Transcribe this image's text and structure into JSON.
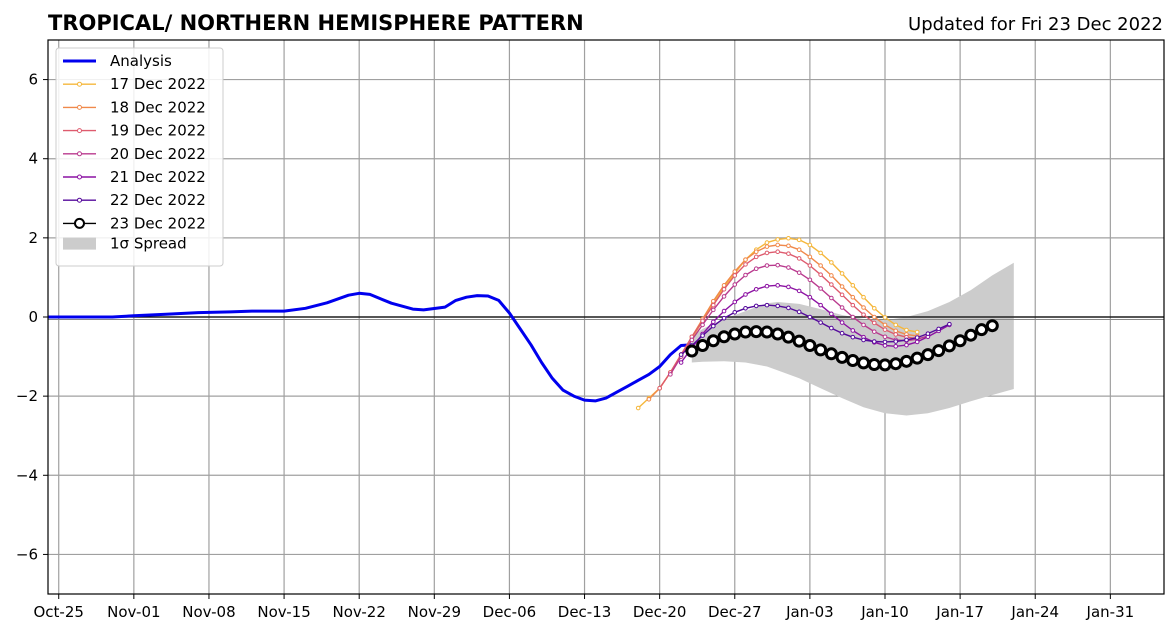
{
  "title": "TROPICAL/ NORTHERN HEMISPHERE PATTERN",
  "subtitle": "Updated for Fri 23 Dec 2022",
  "chart_data": {
    "type": "line",
    "title": "TROPICAL/ NORTHERN HEMISPHERE PATTERN",
    "xlabel": "",
    "ylabel": "",
    "xlim": [
      "2022-10-24",
      "2023-02-05"
    ],
    "ylim": [
      -7,
      7
    ],
    "x_ticks": [
      "Oct-25",
      "Nov-01",
      "Nov-08",
      "Nov-15",
      "Nov-22",
      "Nov-29",
      "Dec-06",
      "Dec-13",
      "Dec-20",
      "Dec-27",
      "Jan-03",
      "Jan-10",
      "Jan-17",
      "Jan-24",
      "Jan-31"
    ],
    "x_tick_dates": [
      "2022-10-25",
      "2022-11-01",
      "2022-11-08",
      "2022-11-15",
      "2022-11-22",
      "2022-11-29",
      "2022-12-06",
      "2022-12-13",
      "2022-12-20",
      "2022-12-27",
      "2023-01-03",
      "2023-01-10",
      "2023-01-17",
      "2023-01-24",
      "2023-01-31"
    ],
    "y_ticks": [
      6,
      4,
      2,
      0,
      -2,
      -4,
      -6
    ],
    "y_tick_labels": [
      "6",
      "4",
      "2",
      "0",
      "−2",
      "−4",
      "−6"
    ],
    "grid": true,
    "legend_position": "top-left",
    "zero_line": true,
    "analysis": {
      "name": "Analysis",
      "color": "#0000ee",
      "points": [
        [
          "2022-10-24",
          0.0
        ],
        [
          "2022-10-27",
          0.0
        ],
        [
          "2022-10-30",
          0.0
        ],
        [
          "2022-11-01",
          0.03
        ],
        [
          "2022-11-04",
          0.07
        ],
        [
          "2022-11-07",
          0.11
        ],
        [
          "2022-11-10",
          0.13
        ],
        [
          "2022-11-12",
          0.15
        ],
        [
          "2022-11-15",
          0.15
        ],
        [
          "2022-11-17",
          0.22
        ],
        [
          "2022-11-19",
          0.36
        ],
        [
          "2022-11-21",
          0.55
        ],
        [
          "2022-11-22",
          0.6
        ],
        [
          "2022-11-23",
          0.57
        ],
        [
          "2022-11-25",
          0.35
        ],
        [
          "2022-11-27",
          0.2
        ],
        [
          "2022-11-28",
          0.18
        ],
        [
          "2022-11-30",
          0.25
        ],
        [
          "2022-12-01",
          0.42
        ],
        [
          "2022-12-02",
          0.5
        ],
        [
          "2022-12-03",
          0.54
        ],
        [
          "2022-12-04",
          0.53
        ],
        [
          "2022-12-05",
          0.42
        ],
        [
          "2022-12-06",
          0.1
        ],
        [
          "2022-12-07",
          -0.3
        ],
        [
          "2022-12-08",
          -0.7
        ],
        [
          "2022-12-09",
          -1.15
        ],
        [
          "2022-12-10",
          -1.55
        ],
        [
          "2022-12-11",
          -1.85
        ],
        [
          "2022-12-12",
          -2.0
        ],
        [
          "2022-12-13",
          -2.1
        ],
        [
          "2022-12-14",
          -2.12
        ],
        [
          "2022-12-15",
          -2.05
        ],
        [
          "2022-12-16",
          -1.9
        ],
        [
          "2022-12-17",
          -1.75
        ],
        [
          "2022-12-18",
          -1.6
        ],
        [
          "2022-12-19",
          -1.45
        ],
        [
          "2022-12-20",
          -1.25
        ],
        [
          "2022-12-21",
          -0.95
        ],
        [
          "2022-12-22",
          -0.72
        ],
        [
          "2022-12-23",
          -0.7
        ]
      ]
    },
    "series": [
      {
        "name": "17 Dec 2022",
        "color": "#f5b73b",
        "start": "2022-12-18",
        "step_days": 1,
        "values": [
          -2.3,
          -2.05,
          -1.8,
          -1.4,
          -1.0,
          -0.55,
          -0.1,
          0.35,
          0.75,
          1.1,
          1.45,
          1.7,
          1.88,
          1.96,
          1.99,
          1.95,
          1.82,
          1.62,
          1.38,
          1.1,
          0.8,
          0.5,
          0.22,
          -0.01,
          -0.2,
          -0.33,
          -0.38
        ]
      },
      {
        "name": "18 Dec 2022",
        "color": "#f0894b",
        "start": "2022-12-19",
        "step_days": 1,
        "values": [
          -2.08,
          -1.8,
          -1.4,
          -0.95,
          -0.5,
          -0.05,
          0.4,
          0.8,
          1.15,
          1.45,
          1.65,
          1.78,
          1.82,
          1.8,
          1.7,
          1.52,
          1.3,
          1.05,
          0.77,
          0.5,
          0.24,
          0.0,
          -0.2,
          -0.35,
          -0.44,
          -0.48
        ]
      },
      {
        "name": "19 Dec 2022",
        "color": "#de5b6e",
        "start": "2022-12-20",
        "step_days": 1,
        "values": [
          -1.8,
          -1.4,
          -0.95,
          -0.5,
          -0.1,
          0.3,
          0.7,
          1.05,
          1.33,
          1.52,
          1.62,
          1.65,
          1.6,
          1.48,
          1.3,
          1.07,
          0.82,
          0.56,
          0.3,
          0.06,
          -0.15,
          -0.32,
          -0.44,
          -0.51,
          -0.54
        ]
      },
      {
        "name": "20 Dec 2022",
        "color": "#b93a8e",
        "start": "2022-12-21",
        "step_days": 1,
        "values": [
          -1.45,
          -1.0,
          -0.58,
          -0.2,
          0.18,
          0.52,
          0.82,
          1.06,
          1.22,
          1.3,
          1.31,
          1.25,
          1.12,
          0.94,
          0.72,
          0.48,
          0.24,
          0.0,
          -0.2,
          -0.37,
          -0.5,
          -0.58,
          -0.6,
          -0.56,
          -0.48
        ]
      },
      {
        "name": "21 Dec 2022",
        "color": "#8c12a3",
        "start": "2022-12-22",
        "step_days": 1,
        "values": [
          -1.15,
          -0.78,
          -0.43,
          -0.12,
          0.15,
          0.38,
          0.57,
          0.7,
          0.78,
          0.8,
          0.76,
          0.66,
          0.5,
          0.3,
          0.08,
          -0.14,
          -0.34,
          -0.51,
          -0.64,
          -0.72,
          -0.74,
          -0.71,
          -0.63,
          -0.5,
          -0.35,
          -0.2
        ]
      },
      {
        "name": "22 Dec 2022",
        "color": "#54099b",
        "start": "2022-12-22",
        "step_days": 1,
        "values": [
          -0.95,
          -0.72,
          -0.47,
          -0.23,
          -0.03,
          0.12,
          0.22,
          0.28,
          0.3,
          0.28,
          0.23,
          0.13,
          0.0,
          -0.14,
          -0.28,
          -0.41,
          -0.51,
          -0.58,
          -0.62,
          -0.63,
          -0.62,
          -0.58,
          -0.52,
          -0.42,
          -0.3,
          -0.18
        ]
      },
      {
        "name": "23 Dec 2022",
        "color": "#000000",
        "start": "2022-12-23",
        "step_days": 1,
        "values": [
          -0.86,
          -0.72,
          -0.6,
          -0.5,
          -0.43,
          -0.38,
          -0.37,
          -0.38,
          -0.43,
          -0.51,
          -0.61,
          -0.72,
          -0.83,
          -0.93,
          -1.02,
          -1.1,
          -1.16,
          -1.2,
          -1.21,
          -1.18,
          -1.12,
          -1.04,
          -0.95,
          -0.85,
          -0.73,
          -0.6,
          -0.46,
          -0.32,
          -0.22
        ]
      }
    ],
    "spread": {
      "name": "1σ Spread",
      "color": "#cccccc",
      "points": [
        [
          "2022-12-23",
          -0.5,
          -1.15
        ],
        [
          "2022-12-24",
          -0.3,
          -1.13
        ],
        [
          "2022-12-26",
          -0.05,
          -1.12
        ],
        [
          "2022-12-28",
          0.15,
          -1.15
        ],
        [
          "2022-12-30",
          0.35,
          -1.25
        ],
        [
          "2022-12-31",
          0.38,
          -1.35
        ],
        [
          "2023-01-02",
          0.33,
          -1.55
        ],
        [
          "2023-01-04",
          0.2,
          -1.8
        ],
        [
          "2023-01-06",
          0.05,
          -2.05
        ],
        [
          "2023-01-08",
          -0.05,
          -2.28
        ],
        [
          "2023-01-10",
          -0.08,
          -2.43
        ],
        [
          "2023-01-12",
          0.0,
          -2.49
        ],
        [
          "2023-01-14",
          0.15,
          -2.43
        ],
        [
          "2023-01-16",
          0.38,
          -2.3
        ],
        [
          "2023-01-18",
          0.68,
          -2.13
        ],
        [
          "2023-01-20",
          1.05,
          -1.97
        ],
        [
          "2023-01-22",
          1.37,
          -1.82
        ]
      ]
    }
  }
}
